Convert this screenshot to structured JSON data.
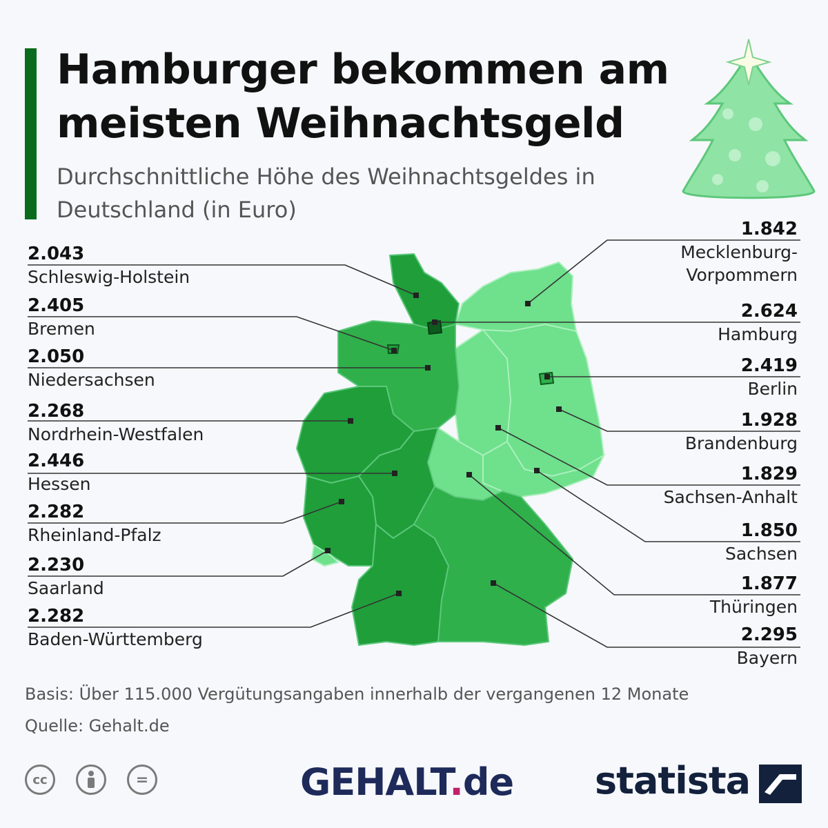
{
  "title": "Hamburger bekommen am meisten Weihnachtsgeld",
  "subtitle": "Durchschnittliche Höhe des Weihnachtsgeldes in Deutschland (in Euro)",
  "colors": {
    "accent_bar": "#0a6b1c",
    "high": "#1f9e3a",
    "mid": "#2fb04b",
    "low": "#6fe08c",
    "hamburg": "#0d5a1e"
  },
  "states": [
    {
      "name": "Schleswig-Holstein",
      "value": "2.043",
      "side": "left"
    },
    {
      "name": "Bremen",
      "value": "2.405",
      "side": "left"
    },
    {
      "name": "Niedersachsen",
      "value": "2.050",
      "side": "left"
    },
    {
      "name": "Nordrhein-Westfalen",
      "value": "2.268",
      "side": "left"
    },
    {
      "name": "Hessen",
      "value": "2.446",
      "side": "left"
    },
    {
      "name": "Rheinland-Pfalz",
      "value": "2.282",
      "side": "left"
    },
    {
      "name": "Saarland",
      "value": "2.230",
      "side": "left"
    },
    {
      "name": "Baden-Württemberg",
      "value": "2.282",
      "side": "left"
    },
    {
      "name": "Mecklenburg-Vorpommern",
      "value": "1.842",
      "side": "right"
    },
    {
      "name": "Hamburg",
      "value": "2.624",
      "side": "right"
    },
    {
      "name": "Berlin",
      "value": "2.419",
      "side": "right"
    },
    {
      "name": "Brandenburg",
      "value": "1.928",
      "side": "right"
    },
    {
      "name": "Sachsen-Anhalt",
      "value": "1.829",
      "side": "right"
    },
    {
      "name": "Sachsen",
      "value": "1.850",
      "side": "right"
    },
    {
      "name": "Thüringen",
      "value": "1.877",
      "side": "right"
    },
    {
      "name": "Bayern",
      "value": "2.295",
      "side": "right"
    }
  ],
  "footer": {
    "basis": "Basis: Über 115.000 Vergütungsangaben innerhalb der vergangenen 12 Monate",
    "source": "Quelle: Gehalt.de"
  },
  "logos": {
    "gehalt_main": "GEHALT",
    "gehalt_dot": ".",
    "gehalt_tld": "de",
    "statista": "statista",
    "cc_icons": [
      "cc-icon",
      "person-icon",
      "equals-icon"
    ]
  }
}
